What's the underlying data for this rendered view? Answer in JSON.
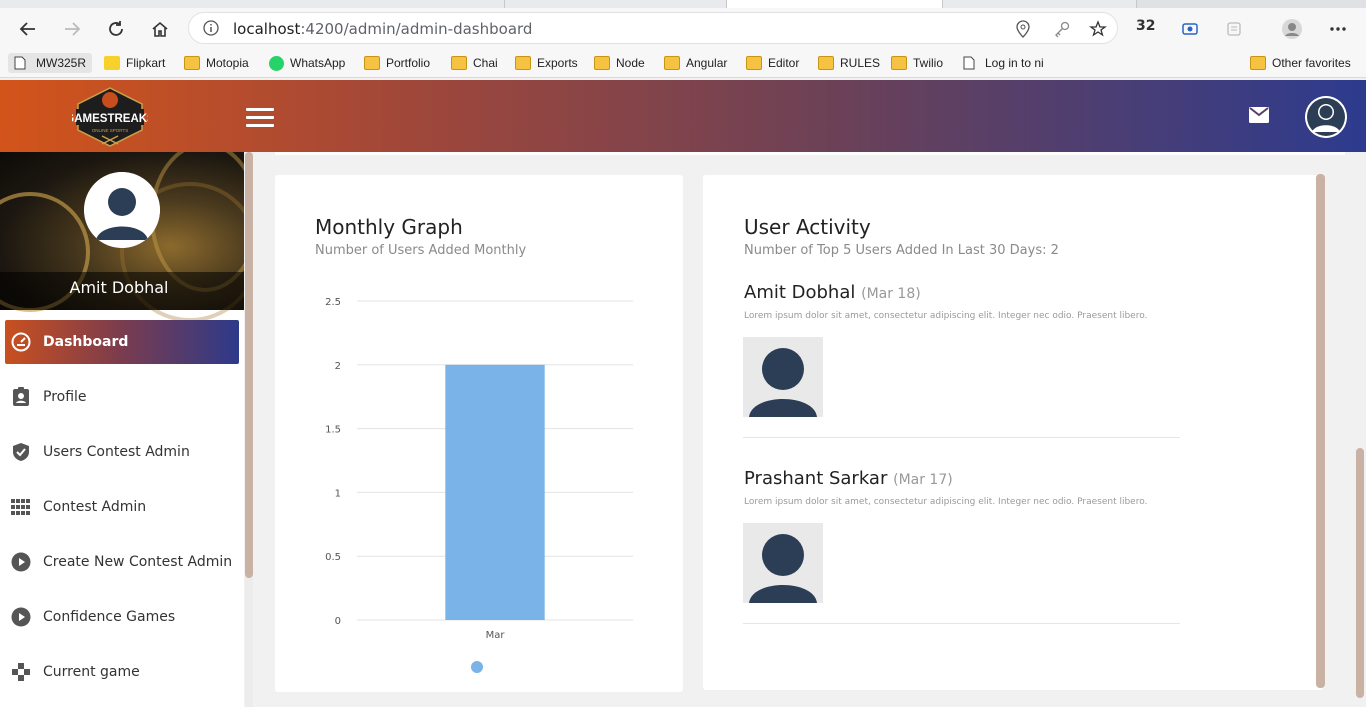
{
  "browser": {
    "url_host": "localhost",
    "url_rest": ":4200/admin/admin-dashboard",
    "counter": "32",
    "bookmarks": [
      {
        "label": "MW325R",
        "icon": "page-icon"
      },
      {
        "label": "Flipkart",
        "icon": "flipkart-icon"
      },
      {
        "label": "Motopia",
        "icon": "folder-icon"
      },
      {
        "label": "WhatsApp",
        "icon": "whatsapp-icon"
      },
      {
        "label": "Portfolio",
        "icon": "folder-icon"
      },
      {
        "label": "Chai",
        "icon": "folder-icon"
      },
      {
        "label": "Exports",
        "icon": "folder-icon"
      },
      {
        "label": "Node",
        "icon": "folder-icon"
      },
      {
        "label": "Angular",
        "icon": "folder-icon"
      },
      {
        "label": "Editor",
        "icon": "folder-icon"
      },
      {
        "label": "RULES",
        "icon": "folder-icon"
      },
      {
        "label": "Twilio",
        "icon": "folder-icon"
      },
      {
        "label": "Log in to ni",
        "icon": "page-icon"
      }
    ],
    "other_favorites": "Other favorites"
  },
  "header": {
    "logo_text": "GAMESTREAKS",
    "logo_subtext": "ONLINE SPORTS"
  },
  "sidebar": {
    "user_name": "Amit Dobhal",
    "items": [
      {
        "label": "Dashboard",
        "icon": "dashboard-icon",
        "active": true
      },
      {
        "label": "Profile",
        "icon": "profile-badge-icon",
        "active": false
      },
      {
        "label": "Users Contest Admin",
        "icon": "shield-check-icon",
        "active": false
      },
      {
        "label": "Contest Admin",
        "icon": "grid-icon",
        "active": false
      },
      {
        "label": "Create New Contest Admin",
        "icon": "play-circle-icon",
        "active": false
      },
      {
        "label": "Confidence Games",
        "icon": "play-circle-icon",
        "active": false
      },
      {
        "label": "Current game",
        "icon": "gamepad-icon",
        "active": false
      }
    ]
  },
  "monthly_graph": {
    "title": "Monthly Graph",
    "subtitle": "Number of Users Added Monthly"
  },
  "chart_data": {
    "type": "bar",
    "categories": [
      "Mar"
    ],
    "values": [
      2
    ],
    "title": "",
    "xlabel": "",
    "ylabel": "",
    "ylim": [
      0,
      2.5
    ],
    "yticks": [
      "0",
      "0.5",
      "1",
      "1.5",
      "2",
      "2.5"
    ],
    "grid": true,
    "legend": "bottom",
    "bar_color": "#7ab3e8"
  },
  "user_activity": {
    "title": "User Activity",
    "subtitle": "Number of Top 5 Users Added In Last 30 Days: 2",
    "entries": [
      {
        "name": "Amit Dobhal",
        "date": "(Mar 18)",
        "text": "Lorem ipsum dolor sit amet, consectetur adipiscing elit. Integer nec odio. Praesent libero."
      },
      {
        "name": "Prashant Sarkar",
        "date": "(Mar 17)",
        "text": "Lorem ipsum dolor sit amet, consectetur adipiscing elit. Integer nec odio. Praesent libero."
      }
    ]
  },
  "colors": {
    "accent_orange": "#d2541a",
    "accent_blue": "#2d3b8e",
    "bar": "#7ab3e8",
    "avatar": "#2c3e55"
  }
}
